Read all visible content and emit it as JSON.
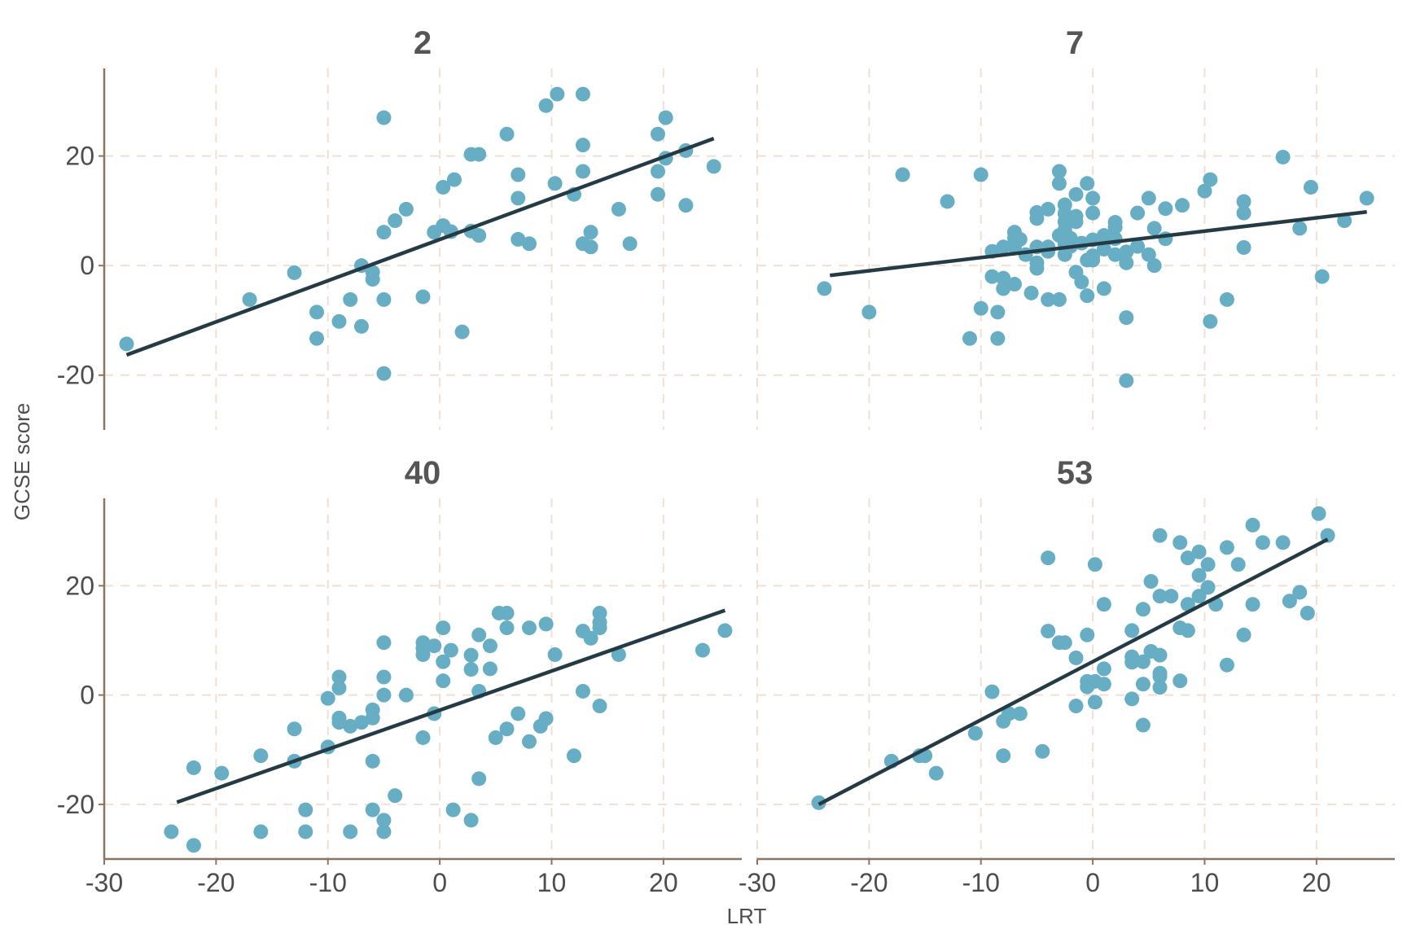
{
  "chart_data": {
    "type": "scatter",
    "facet_layout": "2x2",
    "xlabel": "LRT",
    "ylabel": "GCSE score",
    "xlim": [
      -30,
      27
    ],
    "ylim": [
      -30,
      36
    ],
    "x_ticks": [
      -30,
      -20,
      -10,
      0,
      10,
      20
    ],
    "x_tick_labels": [
      "-30",
      "-20",
      "-10",
      "0",
      "10",
      "20"
    ],
    "y_ticks": [
      -20,
      0,
      20
    ],
    "y_tick_labels": [
      "-20",
      "0",
      "20"
    ],
    "grid": true,
    "colors": {
      "points": "#67adc4",
      "fit_line": "#243b45",
      "axis": "#8c7560",
      "grid": "#f0e0d4",
      "title": "#555555"
    },
    "panels": [
      {
        "title": "2",
        "fit_line": [
          [
            -28,
            -16.3
          ],
          [
            24.5,
            23.2
          ]
        ],
        "points": [
          [
            -28,
            -14.3
          ],
          [
            -17,
            -6.2
          ],
          [
            -13,
            -1.3
          ],
          [
            -11,
            -8.5
          ],
          [
            -11,
            -13.3
          ],
          [
            -9,
            -10.2
          ],
          [
            -8,
            -6.2
          ],
          [
            -7,
            -11.1
          ],
          [
            -7,
            0
          ],
          [
            -6,
            -1.2
          ],
          [
            -6,
            -2.5
          ],
          [
            -5,
            -6.2
          ],
          [
            -5,
            6.1
          ],
          [
            -5,
            27
          ],
          [
            -5,
            -19.7
          ],
          [
            -4,
            8.2
          ],
          [
            -3,
            10.3
          ],
          [
            -1.5,
            -5.7
          ],
          [
            -0.5,
            6.1
          ],
          [
            0.3,
            7.3
          ],
          [
            0.3,
            14.3
          ],
          [
            1,
            6.2
          ],
          [
            1.3,
            15.7
          ],
          [
            2,
            -12.1
          ],
          [
            2.8,
            20.3
          ],
          [
            2.8,
            6.3
          ],
          [
            3.5,
            20.3
          ],
          [
            3.5,
            5.5
          ],
          [
            6,
            24
          ],
          [
            7,
            16.6
          ],
          [
            7,
            12.3
          ],
          [
            7,
            4.8
          ],
          [
            8,
            4
          ],
          [
            9.5,
            29.2
          ],
          [
            10.3,
            15
          ],
          [
            10.5,
            31.3
          ],
          [
            12,
            13
          ],
          [
            12.8,
            31.3
          ],
          [
            12.8,
            22
          ],
          [
            12.8,
            17.2
          ],
          [
            12.8,
            4
          ],
          [
            13.5,
            6.1
          ],
          [
            13.5,
            3.4
          ],
          [
            16,
            10.3
          ],
          [
            17,
            4
          ],
          [
            19.5,
            24
          ],
          [
            19.5,
            17.2
          ],
          [
            19.5,
            13
          ],
          [
            20.2,
            27
          ],
          [
            20.2,
            19.6
          ],
          [
            22,
            21
          ],
          [
            22,
            11
          ],
          [
            24.5,
            18.1
          ]
        ]
      },
      {
        "title": "7",
        "fit_line": [
          [
            -23.5,
            -1.8
          ],
          [
            24.5,
            9.8
          ]
        ],
        "points": [
          [
            -24,
            -4.2
          ],
          [
            -20,
            -8.5
          ],
          [
            -17,
            16.6
          ],
          [
            -13,
            11.7
          ],
          [
            -11,
            -13.3
          ],
          [
            -10,
            -7.8
          ],
          [
            -10,
            16.6
          ],
          [
            -9,
            2.6
          ],
          [
            -9,
            -2
          ],
          [
            -8.5,
            -8.5
          ],
          [
            -8.5,
            -13.3
          ],
          [
            -8,
            3.4
          ],
          [
            -8,
            -2.3
          ],
          [
            -8,
            -4.2
          ],
          [
            -7,
            6.1
          ],
          [
            -7,
            5
          ],
          [
            -7,
            3.4
          ],
          [
            -7,
            -3.4
          ],
          [
            -6.5,
            4.8
          ],
          [
            -6,
            2
          ],
          [
            -5.5,
            -5
          ],
          [
            -5,
            9.7
          ],
          [
            -5,
            8.6
          ],
          [
            -5,
            3.4
          ],
          [
            -5,
            0.5
          ],
          [
            -5,
            -0.5
          ],
          [
            -4,
            10.3
          ],
          [
            -4,
            3.4
          ],
          [
            -4,
            2.6
          ],
          [
            -4,
            -6.2
          ],
          [
            -3,
            17.2
          ],
          [
            -3,
            15
          ],
          [
            -3,
            5.5
          ],
          [
            -3,
            -6.2
          ],
          [
            -2.5,
            11.1
          ],
          [
            -2.5,
            9.5
          ],
          [
            -2.5,
            8
          ],
          [
            -2.5,
            6.5
          ],
          [
            -2.5,
            4
          ],
          [
            -2.5,
            2
          ],
          [
            -2,
            5
          ],
          [
            -2,
            3.5
          ],
          [
            -1.5,
            13
          ],
          [
            -1.5,
            9
          ],
          [
            -1.5,
            8
          ],
          [
            -1.5,
            -1.2
          ],
          [
            -1,
            4.1
          ],
          [
            -1,
            -3
          ],
          [
            -0.5,
            15
          ],
          [
            -0.5,
            1
          ],
          [
            -0.5,
            -5.5
          ],
          [
            0,
            12.3
          ],
          [
            0,
            9.6
          ],
          [
            0,
            4.7
          ],
          [
            0,
            1.8
          ],
          [
            0,
            1
          ],
          [
            1,
            5.5
          ],
          [
            1,
            4.5
          ],
          [
            1,
            3
          ],
          [
            1,
            -4.2
          ],
          [
            2,
            7.9
          ],
          [
            2,
            7
          ],
          [
            2,
            4.9
          ],
          [
            2,
            2
          ],
          [
            3,
            2.5
          ],
          [
            3,
            0.5
          ],
          [
            3,
            -9.5
          ],
          [
            3,
            -21
          ],
          [
            4,
            9.6
          ],
          [
            4,
            3.5
          ],
          [
            5,
            12.3
          ],
          [
            5,
            2
          ],
          [
            5.5,
            6.8
          ],
          [
            5.5,
            0
          ],
          [
            6.5,
            10.4
          ],
          [
            6.5,
            4.9
          ],
          [
            8,
            11
          ],
          [
            10,
            13.6
          ],
          [
            10.5,
            15.7
          ],
          [
            10.5,
            -10.2
          ],
          [
            12,
            -6.2
          ],
          [
            13.5,
            11.7
          ],
          [
            13.5,
            9.6
          ],
          [
            13.5,
            3.3
          ],
          [
            17,
            19.8
          ],
          [
            18.5,
            6.8
          ],
          [
            19.5,
            14.3
          ],
          [
            20.5,
            -2
          ],
          [
            22.5,
            8.2
          ],
          [
            24.5,
            12.3
          ]
        ]
      },
      {
        "title": "40",
        "fit_line": [
          [
            -23.5,
            -19.6
          ],
          [
            25.5,
            15.5
          ]
        ],
        "points": [
          [
            -24,
            -25
          ],
          [
            -22,
            -13.3
          ],
          [
            -22,
            -27.5
          ],
          [
            -19.5,
            -14.3
          ],
          [
            -16,
            -11.1
          ],
          [
            -16,
            -25
          ],
          [
            -13,
            -12.1
          ],
          [
            -13,
            -6.2
          ],
          [
            -12,
            -21
          ],
          [
            -12,
            -25
          ],
          [
            -10,
            -9.5
          ],
          [
            -10,
            -0.6
          ],
          [
            -9,
            3.3
          ],
          [
            -9,
            1.3
          ],
          [
            -9,
            -4.2
          ],
          [
            -9,
            -5
          ],
          [
            -8,
            -5.7
          ],
          [
            -8,
            -25
          ],
          [
            -7,
            -5
          ],
          [
            -6,
            -2.7
          ],
          [
            -6,
            -4.2
          ],
          [
            -6,
            -12.1
          ],
          [
            -6,
            -21
          ],
          [
            -5,
            9.6
          ],
          [
            -5,
            3.3
          ],
          [
            -5,
            0
          ],
          [
            -5,
            -22.9
          ],
          [
            -5,
            -25
          ],
          [
            -4,
            -18.4
          ],
          [
            -3,
            0
          ],
          [
            -1.5,
            9.6
          ],
          [
            -1.5,
            8.5
          ],
          [
            -1.5,
            7.4
          ],
          [
            -1.5,
            -7.8
          ],
          [
            -0.5,
            9
          ],
          [
            -0.5,
            -3.4
          ],
          [
            0.3,
            12.3
          ],
          [
            0.3,
            6.1
          ],
          [
            0.3,
            2.6
          ],
          [
            1,
            8.2
          ],
          [
            1.2,
            -21
          ],
          [
            2.8,
            7.3
          ],
          [
            2.8,
            4.7
          ],
          [
            2.8,
            -22.9
          ],
          [
            3.5,
            11
          ],
          [
            3.5,
            0.7
          ],
          [
            3.5,
            -15.3
          ],
          [
            4.5,
            9
          ],
          [
            4.5,
            4.8
          ],
          [
            5,
            -7.8
          ],
          [
            5.3,
            15
          ],
          [
            6,
            15
          ],
          [
            6,
            12.3
          ],
          [
            6,
            -6.2
          ],
          [
            7,
            -3.4
          ],
          [
            8,
            12.3
          ],
          [
            8,
            -8.5
          ],
          [
            9,
            -5.7
          ],
          [
            9.5,
            13
          ],
          [
            9.5,
            -4.3
          ],
          [
            10.3,
            7.4
          ],
          [
            12,
            -11.1
          ],
          [
            12.8,
            11.7
          ],
          [
            12.8,
            0.7
          ],
          [
            13.5,
            10.4
          ],
          [
            14.3,
            15
          ],
          [
            14.3,
            13.3
          ],
          [
            14.3,
            12.3
          ],
          [
            14.3,
            -2
          ],
          [
            16,
            7.4
          ],
          [
            23.5,
            8.2
          ],
          [
            25.5,
            11.8
          ]
        ]
      },
      {
        "title": "53",
        "fit_line": [
          [
            -24.5,
            -20
          ],
          [
            21,
            28.5
          ]
        ],
        "points": [
          [
            -24.5,
            -19.7
          ],
          [
            -18,
            -12.1
          ],
          [
            -15.5,
            -11.1
          ],
          [
            -15,
            -11.1
          ],
          [
            -14,
            -14.3
          ],
          [
            -10.5,
            -7
          ],
          [
            -9,
            0.6
          ],
          [
            -8,
            -4.8
          ],
          [
            -8,
            -11.1
          ],
          [
            -7.5,
            -3.4
          ],
          [
            -6.5,
            -3.4
          ],
          [
            -4.5,
            -10.3
          ],
          [
            -4,
            25.1
          ],
          [
            -4,
            11.7
          ],
          [
            -3,
            9.6
          ],
          [
            -2.5,
            9.6
          ],
          [
            -1.5,
            6.8
          ],
          [
            -1.5,
            -2
          ],
          [
            -0.5,
            11
          ],
          [
            -0.5,
            2.5
          ],
          [
            -0.5,
            1.5
          ],
          [
            0.2,
            23.9
          ],
          [
            0.2,
            2.5
          ],
          [
            0.2,
            -1.3
          ],
          [
            1,
            16.6
          ],
          [
            1,
            4.8
          ],
          [
            1,
            2
          ],
          [
            3.5,
            11.8
          ],
          [
            3.5,
            7
          ],
          [
            3.5,
            6
          ],
          [
            3.5,
            -0.7
          ],
          [
            4.5,
            15.7
          ],
          [
            4.5,
            6.1
          ],
          [
            4.5,
            2
          ],
          [
            4.5,
            -5.5
          ],
          [
            5.2,
            20.8
          ],
          [
            5.2,
            8
          ],
          [
            6,
            29.2
          ],
          [
            6,
            18.1
          ],
          [
            6,
            7.3
          ],
          [
            6,
            4
          ],
          [
            6,
            3.4
          ],
          [
            6,
            1.4
          ],
          [
            7,
            18.1
          ],
          [
            7.8,
            27.9
          ],
          [
            7.8,
            12.3
          ],
          [
            7.8,
            2.6
          ],
          [
            8.5,
            25.1
          ],
          [
            8.5,
            16.6
          ],
          [
            8.5,
            11.8
          ],
          [
            9.5,
            26.2
          ],
          [
            9.5,
            21.9
          ],
          [
            9.5,
            18.1
          ],
          [
            10.3,
            23.9
          ],
          [
            10.3,
            19.7
          ],
          [
            11,
            16.6
          ],
          [
            12,
            27
          ],
          [
            12,
            5.5
          ],
          [
            13,
            23.9
          ],
          [
            13.5,
            11
          ],
          [
            14.3,
            31.1
          ],
          [
            14.3,
            16.6
          ],
          [
            15.2,
            27.9
          ],
          [
            17,
            27.9
          ],
          [
            17.6,
            17.2
          ],
          [
            18.5,
            18.8
          ],
          [
            19.2,
            15
          ],
          [
            20.2,
            33.2
          ],
          [
            21,
            29.2
          ]
        ]
      }
    ]
  }
}
